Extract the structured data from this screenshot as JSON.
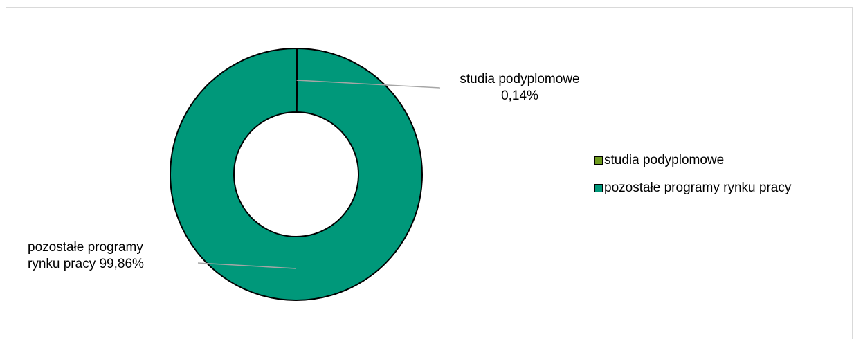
{
  "chart_data": {
    "type": "pie",
    "donut": true,
    "slices": [
      {
        "label": "studia podyplomowe",
        "value": 0.14,
        "data_label": "studia podyplomowe\n0,14%",
        "color": "#6e9b1e"
      },
      {
        "label": "pozostałe programy rynku pracy",
        "value": 99.86,
        "data_label": "pozostałe programy\nrynku pracy 99,86%",
        "color": "#00987a"
      }
    ],
    "legend": {
      "placement": "right"
    }
  }
}
